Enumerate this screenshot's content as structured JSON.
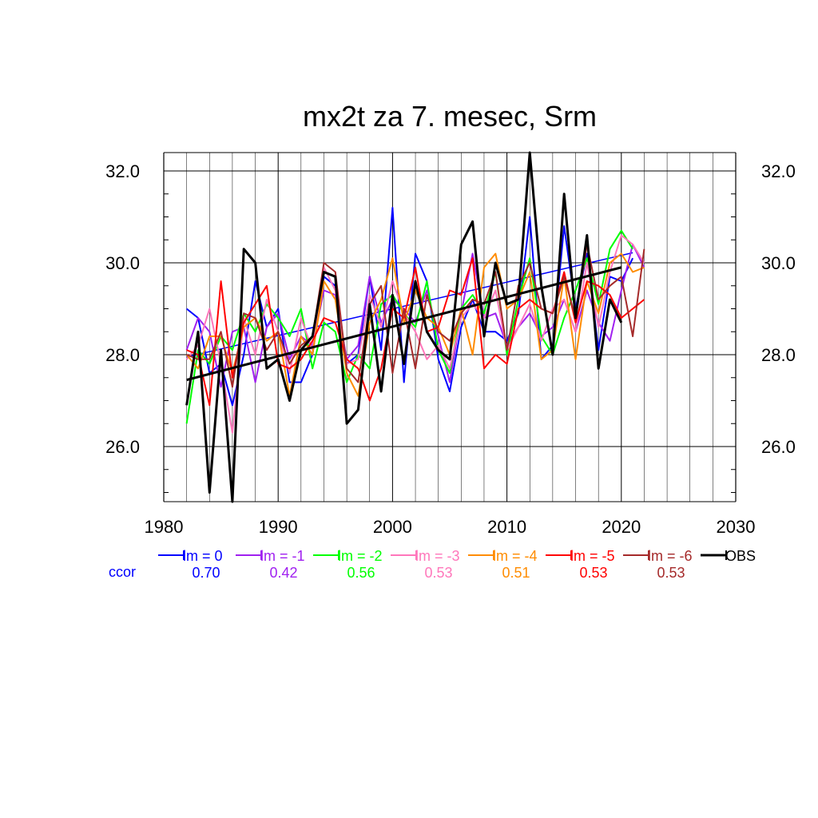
{
  "chart_data": {
    "type": "line",
    "title": "mx2t za 7. mesec, Srm",
    "xlabel": "",
    "ylabel": "",
    "xlim": [
      1980,
      2030
    ],
    "ylim": [
      24.8,
      32.4
    ],
    "x_ticks": [
      1980,
      1990,
      2000,
      2010,
      2020,
      2030
    ],
    "x_tick_labels": [
      "1980",
      "1990",
      "2000",
      "2010",
      "2020",
      "2030"
    ],
    "y_ticks": [
      26,
      28,
      30,
      32
    ],
    "y_tick_labels": [
      "26.0",
      "28.0",
      "30.0",
      "32.0"
    ],
    "grid": true,
    "legend_position": "bottom",
    "ccor_label": "ccor",
    "series": [
      {
        "name": "lm = 0",
        "ccor": "0.70",
        "color": "#0000ff",
        "x": [
          1982,
          1983,
          1984,
          1985,
          1986,
          1987,
          1988,
          1989,
          1990,
          1991,
          1992,
          1993,
          1994,
          1995,
          1996,
          1997,
          1998,
          1999,
          2000,
          2001,
          2002,
          2003,
          2004,
          2005,
          2006,
          2007,
          2008,
          2009,
          2010,
          2011,
          2012,
          2013,
          2014,
          2015,
          2016,
          2017,
          2018,
          2019,
          2020,
          2021
        ],
        "values": [
          29.0,
          28.8,
          27.6,
          27.8,
          26.9,
          28.0,
          29.6,
          28.6,
          29.0,
          27.4,
          27.4,
          28.0,
          29.7,
          29.5,
          27.8,
          28.0,
          29.7,
          28.1,
          31.2,
          27.4,
          30.2,
          29.6,
          27.9,
          27.2,
          28.6,
          29.2,
          28.5,
          28.5,
          28.3,
          28.9,
          31.0,
          27.9,
          28.2,
          30.8,
          29.0,
          30.2,
          28.1,
          29.7,
          29.6,
          30.1
        ],
        "trend": [
          [
            1982,
            27.95
          ],
          [
            2021,
            30.22
          ]
        ]
      },
      {
        "name": "lm = -1",
        "ccor": "0.42",
        "color": "#a020f0",
        "x": [
          1982,
          1983,
          1984,
          1985,
          1986,
          1987,
          1988,
          1989,
          1990,
          1991,
          1992,
          1993,
          1994,
          1995,
          1996,
          1997,
          1998,
          1999,
          2000,
          2001,
          2002,
          2003,
          2004,
          2005,
          2006,
          2007,
          2008,
          2009,
          2010,
          2011,
          2012,
          2013,
          2014,
          2015,
          2016,
          2017,
          2018,
          2019,
          2020,
          2021,
          2022
        ],
        "values": [
          28.1,
          28.8,
          28.5,
          27.3,
          28.5,
          28.6,
          27.4,
          28.6,
          28.9,
          27.9,
          28.4,
          28.2,
          29.4,
          29.3,
          27.9,
          28.2,
          29.7,
          28.7,
          29.2,
          29.0,
          28.7,
          29.4,
          28.4,
          27.4,
          28.9,
          30.2,
          28.8,
          28.9,
          28.2,
          28.6,
          28.9,
          28.4,
          28.6,
          29.2,
          28.5,
          29.4,
          28.7,
          28.3,
          29.4,
          30.4,
          29.9
        ]
      },
      {
        "name": "lm = -2",
        "ccor": "0.56",
        "color": "#00ff00",
        "x": [
          1982,
          1983,
          1984,
          1985,
          1986,
          1987,
          1988,
          1989,
          1990,
          1991,
          1992,
          1993,
          1994,
          1995,
          1996,
          1997,
          1998,
          1999,
          2000,
          2001,
          2002,
          2003,
          2004,
          2005,
          2006,
          2007,
          2008,
          2009,
          2010,
          2011,
          2012,
          2013,
          2014,
          2015,
          2016,
          2017,
          2018,
          2019,
          2020,
          2021
        ],
        "values": [
          26.5,
          28.1,
          27.8,
          28.4,
          28.1,
          28.9,
          28.5,
          29.1,
          28.8,
          28.4,
          29.0,
          27.7,
          28.7,
          28.5,
          27.4,
          28.0,
          27.7,
          29.1,
          29.3,
          28.9,
          28.6,
          29.6,
          28.1,
          27.6,
          29.0,
          29.3,
          28.9,
          29.8,
          28.0,
          29.2,
          30.1,
          28.4,
          28.0,
          28.8,
          29.4,
          30.1,
          29.1,
          30.3,
          30.7,
          30.3
        ]
      },
      {
        "name": "lm = -3",
        "ccor": "0.53",
        "color": "#ff77bb",
        "x": [
          1982,
          1983,
          1984,
          1985,
          1986,
          1987,
          1988,
          1989,
          1990,
          1991,
          1992,
          1993,
          1994,
          1995,
          1996,
          1997,
          1998,
          1999,
          2000,
          2001,
          2002,
          2003,
          2004,
          2005,
          2006,
          2007,
          2008,
          2009,
          2010,
          2011,
          2012,
          2013,
          2014,
          2015,
          2016,
          2017,
          2018,
          2019,
          2020,
          2021,
          2022
        ],
        "values": [
          27.9,
          28.2,
          29.0,
          27.8,
          26.3,
          28.8,
          28.0,
          29.2,
          28.5,
          27.6,
          28.8,
          28.1,
          29.9,
          29.4,
          27.8,
          27.9,
          29.3,
          28.6,
          29.6,
          28.9,
          28.5,
          27.9,
          28.2,
          27.7,
          28.8,
          29.1,
          28.8,
          29.4,
          28.1,
          28.6,
          29.1,
          28.3,
          29.0,
          29.2,
          28.5,
          30.0,
          28.6,
          29.8,
          30.6,
          30.4,
          30.0
        ]
      },
      {
        "name": "lm = -4",
        "ccor": "0.51",
        "color": "#ff8c00",
        "x": [
          1982,
          1983,
          1984,
          1985,
          1986,
          1987,
          1988,
          1989,
          1990,
          1991,
          1992,
          1993,
          1994,
          1995,
          1996,
          1997,
          1998,
          1999,
          2000,
          2001,
          2002,
          2003,
          2004,
          2005,
          2006,
          2007,
          2008,
          2009,
          2010,
          2011,
          2012,
          2013,
          2014,
          2015,
          2016,
          2017,
          2018,
          2019,
          2020,
          2021,
          2022
        ],
        "values": [
          28.0,
          27.7,
          28.4,
          28.4,
          27.6,
          28.6,
          28.8,
          28.3,
          28.5,
          27.1,
          28.4,
          28.0,
          29.6,
          29.2,
          27.6,
          27.1,
          28.7,
          29.2,
          30.1,
          28.7,
          29.4,
          28.8,
          28.6,
          28.0,
          29.0,
          28.0,
          29.9,
          30.2,
          29.0,
          29.2,
          29.8,
          27.9,
          28.1,
          29.7,
          27.9,
          29.6,
          28.9,
          30.0,
          30.2,
          29.8,
          29.9
        ]
      },
      {
        "name": "lm = -5",
        "ccor": "0.53",
        "color": "#ff0000",
        "x": [
          1982,
          1983,
          1984,
          1985,
          1986,
          1987,
          1988,
          1989,
          1990,
          1991,
          1992,
          1993,
          1994,
          1995,
          1996,
          1997,
          1998,
          1999,
          2000,
          2001,
          2002,
          2003,
          2004,
          2005,
          2006,
          2007,
          2008,
          2009,
          2010,
          2011,
          2012,
          2013,
          2014,
          2015,
          2016,
          2017,
          2018,
          2019,
          2020,
          2021,
          2022
        ],
        "values": [
          28.1,
          28.0,
          26.9,
          29.6,
          27.5,
          28.7,
          29.1,
          29.5,
          27.8,
          27.7,
          27.9,
          28.3,
          28.8,
          28.7,
          27.9,
          27.7,
          27.0,
          27.7,
          29.0,
          28.8,
          29.9,
          28.5,
          28.6,
          29.4,
          29.3,
          30.1,
          27.7,
          28.0,
          27.8,
          29.0,
          29.2,
          29.0,
          28.9,
          29.8,
          28.7,
          29.6,
          29.5,
          29.3,
          28.8,
          29.0,
          29.2
        ]
      },
      {
        "name": "lm = -6",
        "ccor": "0.53",
        "color": "#a52a2a",
        "x": [
          1982,
          1983,
          1984,
          1985,
          1986,
          1987,
          1988,
          1989,
          1990,
          1991,
          1992,
          1993,
          1994,
          1995,
          1996,
          1997,
          1998,
          1999,
          2000,
          2001,
          2002,
          2003,
          2004,
          2005,
          2006,
          2007,
          2008,
          2009,
          2010,
          2011,
          2012,
          2013,
          2014,
          2015,
          2016,
          2017,
          2018,
          2019,
          2020,
          2021,
          2022
        ],
        "values": [
          28.0,
          27.9,
          27.9,
          28.5,
          27.3,
          28.9,
          28.8,
          28.1,
          28.5,
          27.8,
          28.2,
          28.4,
          30.0,
          29.8,
          27.7,
          27.4,
          29.1,
          29.5,
          27.6,
          29.0,
          27.7,
          29.3,
          28.5,
          28.3,
          28.9,
          29.2,
          29.1,
          29.8,
          28.1,
          29.5,
          30.0,
          29.0,
          28.9,
          29.7,
          28.8,
          30.4,
          29.2,
          29.5,
          29.7,
          28.4,
          30.3
        ]
      },
      {
        "name": "OBS",
        "ccor": "",
        "color": "#000000",
        "x": [
          1982,
          1983,
          1984,
          1985,
          1986,
          1987,
          1988,
          1989,
          1990,
          1991,
          1992,
          1993,
          1994,
          1995,
          1996,
          1997,
          1998,
          1999,
          2000,
          2001,
          2002,
          2003,
          2004,
          2005,
          2006,
          2007,
          2008,
          2009,
          2010,
          2011,
          2012,
          2013,
          2014,
          2015,
          2016,
          2017,
          2018,
          2019,
          2020
        ],
        "values": [
          26.9,
          28.5,
          25.0,
          28.1,
          24.8,
          30.3,
          30.0,
          27.7,
          27.9,
          27.0,
          28.1,
          28.4,
          29.8,
          29.7,
          26.5,
          26.8,
          29.1,
          27.2,
          29.3,
          27.8,
          29.6,
          28.5,
          28.1,
          27.9,
          30.4,
          30.9,
          28.4,
          30.0,
          29.1,
          29.2,
          32.4,
          29.5,
          28.0,
          31.5,
          28.8,
          30.6,
          27.7,
          29.2,
          28.7
        ],
        "trend": [
          [
            1982,
            27.45
          ],
          [
            2020,
            29.9
          ]
        ]
      }
    ]
  }
}
